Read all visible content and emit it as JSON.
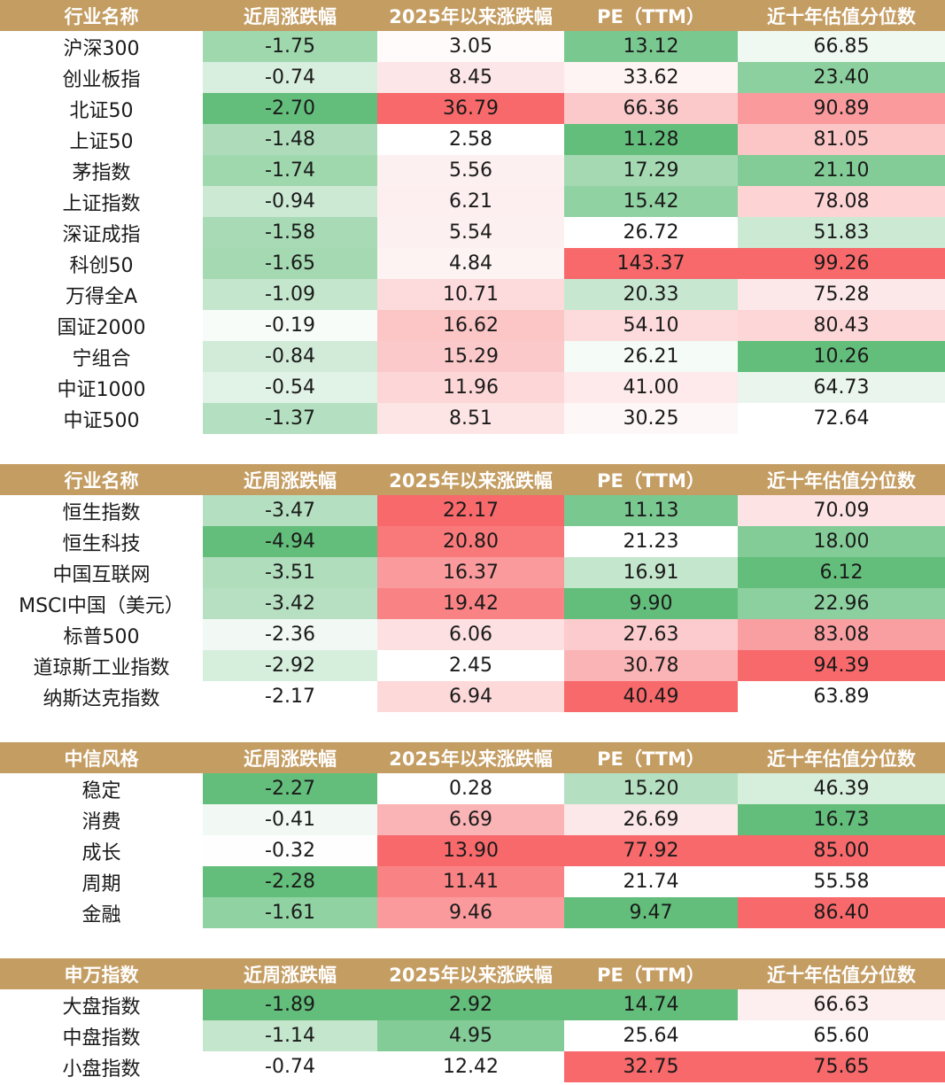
{
  "colors": {
    "header_bg": "#c49d63",
    "header_text": "#ffffff",
    "red_strong": "#f8696b",
    "green_strong": "#63be7b",
    "white": "#ffffff"
  },
  "tables": [
    {
      "headers": [
        "行业名称",
        "近周涨跌幅",
        "2025年以来涨跌幅",
        "PE（TTM）",
        "近十年估值分位数"
      ],
      "rows": [
        {
          "name": "沪深300",
          "values": [
            "-1.75",
            "3.05",
            "13.12",
            "66.85"
          ],
          "colors": [
            "#a0d8ae",
            "#fffbfb",
            "#79c890",
            "#f0f8f2"
          ]
        },
        {
          "name": "创业板指",
          "values": [
            "-0.74",
            "8.45",
            "33.62",
            "23.40"
          ],
          "colors": [
            "#d8eede",
            "#fde6e7",
            "#fff4f4",
            "#8cd09f"
          ]
        },
        {
          "name": "北证50",
          "values": [
            "-2.70",
            "36.79",
            "66.36",
            "90.89"
          ],
          "colors": [
            "#63be7b",
            "#f8696b",
            "#fcc9cb",
            "#fa9a9c"
          ]
        },
        {
          "name": "上证50",
          "values": [
            "-1.48",
            "2.58",
            "11.28",
            "81.05"
          ],
          "colors": [
            "#aedcba",
            "#ffffff",
            "#63be7b",
            "#fcc6c7"
          ]
        },
        {
          "name": "茅指数",
          "values": [
            "-1.74",
            "5.56",
            "17.29",
            "21.10"
          ],
          "colors": [
            "#a0d8ae",
            "#fdf0f0",
            "#a4d9b2",
            "#83cc97"
          ]
        },
        {
          "name": "上证指数",
          "values": [
            "-0.94",
            "6.21",
            "15.42",
            "78.08"
          ],
          "colors": [
            "#cce9d4",
            "#fdeeef",
            "#91d2a3",
            "#fdd3d4"
          ]
        },
        {
          "name": "深证成指",
          "values": [
            "-1.58",
            "5.54",
            "26.72",
            "51.83"
          ],
          "colors": [
            "#a8dab5",
            "#fdf0f0",
            "#ffffff",
            "#cce9d4"
          ]
        },
        {
          "name": "科创50",
          "values": [
            "-1.65",
            "4.84",
            "143.37",
            "99.26"
          ],
          "colors": [
            "#a4d9b2",
            "#fdf3f3",
            "#f8696b",
            "#f8696b"
          ]
        },
        {
          "name": "万得全A",
          "values": [
            "-1.09",
            "10.71",
            "20.33",
            "75.28"
          ],
          "colors": [
            "#c4e6cd",
            "#fddadb",
            "#c8e7d0",
            "#fde8e9"
          ]
        },
        {
          "name": "国证2000",
          "values": [
            "-0.19",
            "16.62",
            "54.10",
            "80.43"
          ],
          "colors": [
            "#f8fcf9",
            "#fcc5c6",
            "#fddadb",
            "#fdd6d7"
          ]
        },
        {
          "name": "宁组合",
          "values": [
            "-0.84",
            "15.29",
            "26.21",
            "10.26"
          ],
          "colors": [
            "#d2ebd9",
            "#fcc9ca",
            "#f5fbf7",
            "#63be7b"
          ]
        },
        {
          "name": "中证1000",
          "values": [
            "-0.54",
            "11.96",
            "41.00",
            "64.73"
          ],
          "colors": [
            "#e1f2e6",
            "#fdd6d7",
            "#feeaea",
            "#eaf6ed"
          ]
        },
        {
          "name": "中证500",
          "values": [
            "-1.37",
            "8.51",
            "30.25",
            "72.64"
          ],
          "colors": [
            "#b4dfc0",
            "#fde5e6",
            "#fef7f7",
            "#ffffff"
          ]
        }
      ]
    },
    {
      "headers": [
        "行业名称",
        "近周涨跌幅",
        "2025年以来涨跌幅",
        "PE（TTM）",
        "近十年估值分位数"
      ],
      "rows": [
        {
          "name": "恒生指数",
          "values": [
            "-3.47",
            "22.17",
            "11.13",
            "70.09"
          ],
          "colors": [
            "#b4dfc0",
            "#f8696b",
            "#79c890",
            "#fde3e4"
          ]
        },
        {
          "name": "恒生科技",
          "values": [
            "-4.94",
            "20.80",
            "21.23",
            "18.00"
          ],
          "colors": [
            "#63be7b",
            "#f9797b",
            "#ffffff",
            "#83cc97"
          ]
        },
        {
          "name": "中国互联网",
          "values": [
            "-3.51",
            "16.37",
            "16.91",
            "6.12"
          ],
          "colors": [
            "#b0ddbc",
            "#fa9a9c",
            "#c4e6cd",
            "#63be7b"
          ]
        },
        {
          "name": "MSCI中国（美元）",
          "values": [
            "-3.42",
            "19.42",
            "9.90",
            "22.96"
          ],
          "colors": [
            "#b7e0c2",
            "#f98284",
            "#63be7b",
            "#8cd09f"
          ]
        },
        {
          "name": "标普500",
          "values": [
            "-2.36",
            "6.06",
            "27.63",
            "83.08"
          ],
          "colors": [
            "#f2f9f4",
            "#fde1e2",
            "#fccbcd",
            "#fa9fa1"
          ]
        },
        {
          "name": "道琼斯工业指数",
          "values": [
            "-2.92",
            "2.45",
            "30.78",
            "94.39"
          ],
          "colors": [
            "#d6eedc",
            "#ffffff",
            "#fbb4b5",
            "#f8696b"
          ]
        },
        {
          "name": "纳斯达克指数",
          "values": [
            "-2.17",
            "6.94",
            "40.49",
            "63.89"
          ],
          "colors": [
            "#ffffff",
            "#fdd9da",
            "#f8696b",
            "#ffffff"
          ]
        }
      ]
    },
    {
      "headers": [
        "中信风格",
        "近周涨跌幅",
        "2025年以来涨跌幅",
        "PE（TTM）",
        "近十年估值分位数"
      ],
      "rows": [
        {
          "name": "稳定",
          "values": [
            "-2.27",
            "0.28",
            "15.20",
            "46.39"
          ],
          "colors": [
            "#63be7b",
            "#ffffff",
            "#b4dfc0",
            "#d6eedc"
          ]
        },
        {
          "name": "消费",
          "values": [
            "-0.41",
            "6.69",
            "26.69",
            "16.73"
          ],
          "colors": [
            "#f2f9f4",
            "#fbb4b5",
            "#fde8e9",
            "#63be7b"
          ]
        },
        {
          "name": "成长",
          "values": [
            "-0.32",
            "13.90",
            "77.92",
            "85.00"
          ],
          "colors": [
            "#fdfefd",
            "#f8696b",
            "#f8696b",
            "#f8696b"
          ]
        },
        {
          "name": "周期",
          "values": [
            "-2.28",
            "11.41",
            "21.74",
            "55.58"
          ],
          "colors": [
            "#63be7b",
            "#f98284",
            "#ffffff",
            "#ffffff"
          ]
        },
        {
          "name": "金融",
          "values": [
            "-1.61",
            "9.46",
            "9.47",
            "86.40"
          ],
          "colors": [
            "#91d2a3",
            "#fa9a9c",
            "#63be7b",
            "#f8696b"
          ]
        }
      ]
    },
    {
      "headers": [
        "申万指数",
        "近周涨跌幅",
        "2025年以来涨跌幅",
        "PE（TTM）",
        "近十年估值分位数"
      ],
      "rows": [
        {
          "name": "大盘指数",
          "values": [
            "-1.89",
            "2.92",
            "14.74",
            "66.63"
          ],
          "colors": [
            "#63be7b",
            "#63be7b",
            "#63be7b",
            "#fdeeef"
          ]
        },
        {
          "name": "中盘指数",
          "values": [
            "-1.14",
            "4.95",
            "25.64",
            "65.60"
          ],
          "colors": [
            "#c4e6cd",
            "#83cc97",
            "#ffffff",
            "#ffffff"
          ]
        },
        {
          "name": "小盘指数",
          "values": [
            "-0.74",
            "12.42",
            "32.75",
            "75.65"
          ],
          "colors": [
            "#ffffff",
            "#ffffff",
            "#f8696b",
            "#f8696b"
          ]
        }
      ]
    }
  ]
}
